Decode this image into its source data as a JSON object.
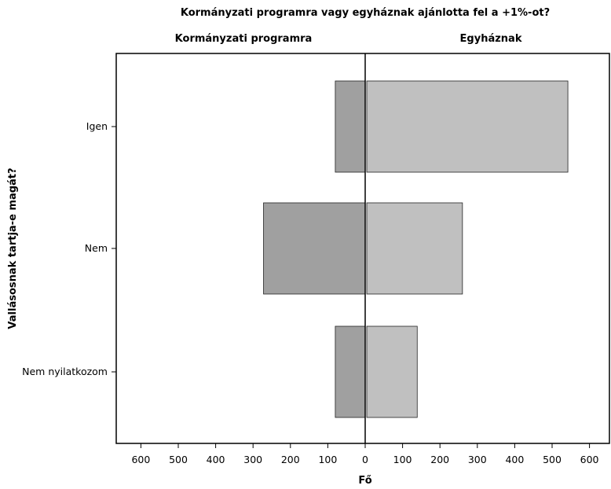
{
  "chart_data": {
    "type": "bar",
    "orientation": "horizontal",
    "layout": "back-to-back",
    "title": "Kormányzati programra vagy egyháznak ajánlotta fel a +1%-ot?",
    "panels": [
      "Kormányzati programra",
      "Egyháznak"
    ],
    "ylabel": "Vallásosnak tartja-e magát?",
    "xlabel": "Fő",
    "categories": [
      "Igen",
      "Nem",
      "Nem nyilatkozom"
    ],
    "series": [
      {
        "name": "Kormányzati programra",
        "values": [
          80,
          272,
          80
        ],
        "color": "#a0a0a0"
      },
      {
        "name": "Egyháznak",
        "values": [
          538,
          256,
          135
        ],
        "color": "#c0c0c0"
      }
    ],
    "xlim": [
      0,
      600
    ],
    "xticks": [
      0,
      100,
      200,
      300,
      400,
      500,
      600
    ],
    "xtick_labels_left": [
      "600",
      "500",
      "400",
      "300",
      "200",
      "100",
      "0"
    ],
    "xtick_labels_right": [
      "0",
      "100",
      "200",
      "300",
      "400",
      "500",
      "600"
    ],
    "grid": false,
    "legend": "none"
  }
}
